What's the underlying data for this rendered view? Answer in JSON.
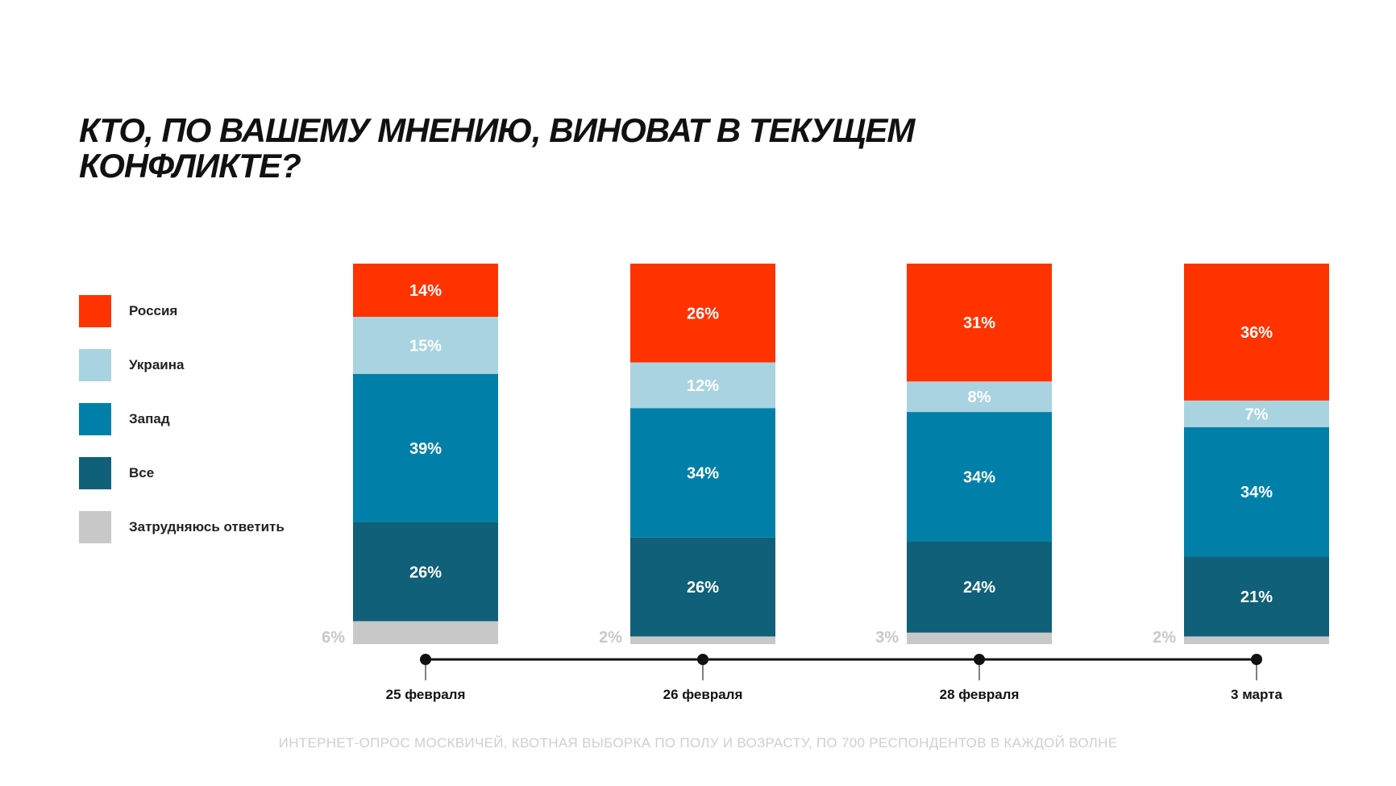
{
  "chart_data": {
    "type": "bar",
    "stacked": true,
    "orientation": "vertical",
    "title": "Кто, по вашему мнению, виноват в текущем конфликте?",
    "categories": [
      "25 февраля",
      "26 февраля",
      "28 февраля",
      "3 марта"
    ],
    "series": [
      {
        "name": "Россия",
        "color": "#ff3300",
        "values": [
          14,
          26,
          31,
          36
        ]
      },
      {
        "name": "Украина",
        "color": "#a9d3e0",
        "values": [
          15,
          12,
          8,
          7
        ]
      },
      {
        "name": "Запад",
        "color": "#0080a8",
        "values": [
          39,
          34,
          34,
          34
        ]
      },
      {
        "name": "Все",
        "color": "#0f6078",
        "values": [
          26,
          26,
          24,
          21
        ]
      },
      {
        "name": "Затрудняюсь ответить",
        "color": "#c8c8c8",
        "values": [
          6,
          2,
          3,
          2
        ]
      }
    ],
    "value_suffix": "%",
    "ylim": [
      0,
      100
    ],
    "legend_position": "left",
    "grid": false,
    "footnote": "ИНТЕРНЕТ-ОПРОС МОСКВИЧЕЙ, КВОТНАЯ ВЫБОРКА ПО ПОЛУ И ВОЗРАСТУ, ПО 700 РЕСПОНДЕНТОВ В КАЖДОЙ ВОЛНЕ"
  }
}
